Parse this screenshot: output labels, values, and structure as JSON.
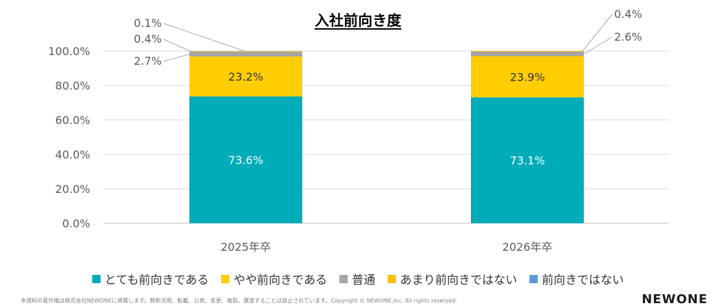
{
  "chart_data": {
    "type": "bar",
    "stacked": true,
    "title": "入社前向き度",
    "categories": [
      "2025年卒",
      "2026年卒"
    ],
    "series": [
      {
        "name": "とても前向きである",
        "values": [
          73.6,
          73.1
        ],
        "color": "#00ACBA",
        "labels": [
          "73.6%",
          "73.1%"
        ]
      },
      {
        "name": "やや前向きである",
        "values": [
          23.2,
          23.9
        ],
        "color": "#FFCD00",
        "labels": [
          "23.2%",
          "23.9%"
        ]
      },
      {
        "name": "普通",
        "values": [
          2.7,
          2.6
        ],
        "color": "#A5A5A5",
        "labels": [
          "2.7%",
          "2.6%"
        ]
      },
      {
        "name": "あまり前向きではない",
        "values": [
          0.4,
          0.4
        ],
        "color": "#FFC000",
        "labels": [
          "0.4%",
          "0.4%"
        ]
      },
      {
        "name": "前向きではない",
        "values": [
          0.1,
          0.0
        ],
        "color": "#5B9BD5",
        "labels": [
          "0.1%",
          ""
        ]
      }
    ],
    "yticks": [
      "0.0%",
      "20.0%",
      "40.0%",
      "60.0%",
      "80.0%",
      "100.0%"
    ],
    "ylim": [
      0,
      100
    ],
    "grid": true,
    "legend": "bottom"
  },
  "footer": {
    "copyright": "本資料の著作権は株式会社NEWONEに帰属します。無断活用、転載、公表、変更、複製、譲渡することは禁止されています。Copyright © NEWONE,Inc.  All rights reserved.",
    "brand": "NEWONE"
  }
}
